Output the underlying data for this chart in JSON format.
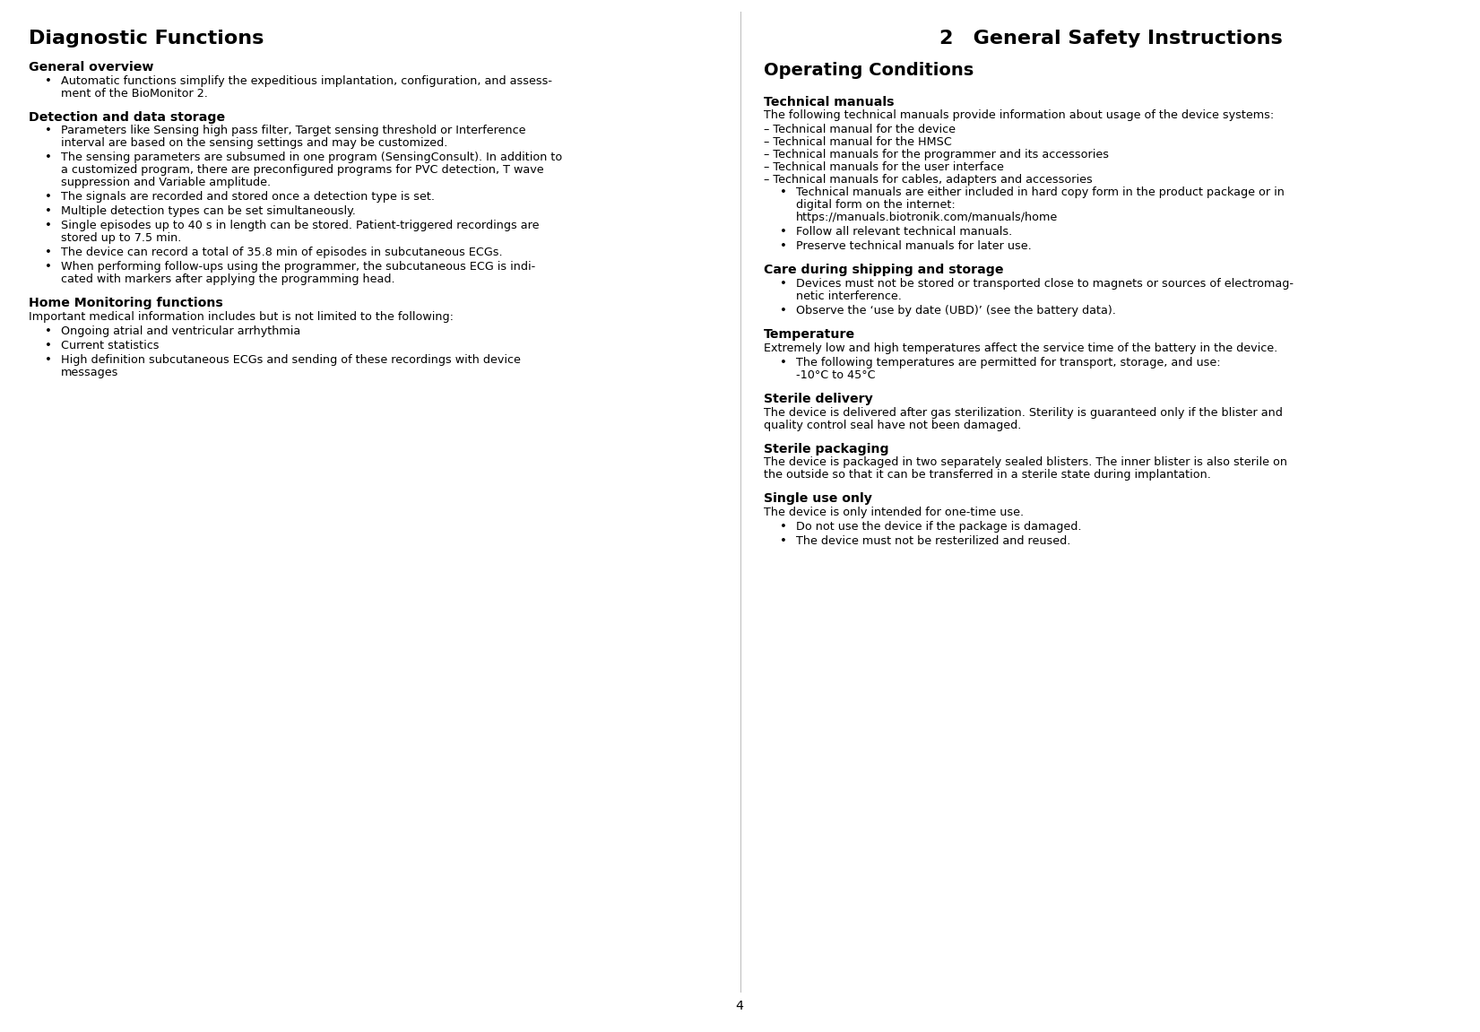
{
  "bg_color": "#ffffff",
  "text_color": "#000000",
  "page_number": "4",
  "left_column": {
    "title": "Diagnostic Functions",
    "sections": [
      {
        "type": "subheading_bold",
        "text": "General overview"
      },
      {
        "type": "bullet",
        "lines": [
          "Automatic functions simplify the expeditious implantation, configuration, and assess-",
          "ment of the BioMonitor 2."
        ]
      },
      {
        "type": "subheading_bold",
        "text": "Detection and data storage"
      },
      {
        "type": "bullet",
        "lines": [
          "Parameters like Sensing high pass filter, Target sensing threshold or Interference",
          "interval are based on the sensing settings and may be customized."
        ]
      },
      {
        "type": "bullet",
        "lines": [
          "The sensing parameters are subsumed in one program (SensingConsult). In addition to",
          "a customized program, there are preconfigured programs for PVC detection, T wave",
          "suppression and Variable amplitude."
        ]
      },
      {
        "type": "bullet",
        "lines": [
          "The signals are recorded and stored once a detection type is set."
        ]
      },
      {
        "type": "bullet",
        "lines": [
          "Multiple detection types can be set simultaneously."
        ]
      },
      {
        "type": "bullet",
        "lines": [
          "Single episodes up to 40 s in length can be stored. Patient-triggered recordings are",
          "stored up to 7.5 min."
        ]
      },
      {
        "type": "bullet",
        "lines": [
          "The device can record a total of 35.8 min of episodes in subcutaneous ECGs."
        ]
      },
      {
        "type": "bullet",
        "lines": [
          "When performing follow-ups using the programmer, the subcutaneous ECG is indi-",
          "cated with markers after applying the programming head."
        ]
      },
      {
        "type": "subheading_bold",
        "text": "Home Monitoring functions"
      },
      {
        "type": "plain",
        "lines": [
          "Important medical information includes but is not limited to the following:"
        ]
      },
      {
        "type": "bullet",
        "lines": [
          "Ongoing atrial and ventricular arrhythmia"
        ]
      },
      {
        "type": "bullet",
        "lines": [
          "Current statistics"
        ]
      },
      {
        "type": "bullet",
        "lines": [
          "High definition subcutaneous ECGs and sending of these recordings with device",
          "messages"
        ]
      }
    ]
  },
  "right_column": {
    "chapter_title": "2 General Safety Instructions",
    "sections": [
      {
        "type": "section_heading",
        "text": "Operating Conditions"
      },
      {
        "type": "subheading_bold",
        "text": "Technical manuals"
      },
      {
        "type": "plain",
        "lines": [
          "The following technical manuals provide information about usage of the device systems:"
        ]
      },
      {
        "type": "dash_item",
        "text": "Technical manual for the device"
      },
      {
        "type": "dash_item",
        "text": "Technical manual for the HMSC"
      },
      {
        "type": "dash_item",
        "text": "Technical manuals for the programmer and its accessories"
      },
      {
        "type": "dash_item",
        "text": "Technical manuals for the user interface"
      },
      {
        "type": "dash_item",
        "text": "Technical manuals for cables, adapters and accessories"
      },
      {
        "type": "bullet",
        "lines": [
          "Technical manuals are either included in hard copy form in the product package or in",
          "digital form on the internet:",
          "https://manuals.biotronik.com/manuals/home"
        ]
      },
      {
        "type": "bullet",
        "lines": [
          "Follow all relevant technical manuals."
        ]
      },
      {
        "type": "bullet",
        "lines": [
          "Preserve technical manuals for later use."
        ]
      },
      {
        "type": "subheading_bold",
        "text": "Care during shipping and storage"
      },
      {
        "type": "bullet",
        "lines": [
          "Devices must not be stored or transported close to magnets or sources of electromag-",
          "netic interference."
        ]
      },
      {
        "type": "bullet",
        "lines": [
          "Observe the ‘use by date (UBD)’ (see the battery data)."
        ]
      },
      {
        "type": "subheading_bold",
        "text": "Temperature"
      },
      {
        "type": "plain",
        "lines": [
          "Extremely low and high temperatures affect the service time of the battery in the device."
        ]
      },
      {
        "type": "bullet",
        "lines": [
          "The following temperatures are permitted for transport, storage, and use:",
          "-10°C to 45°C"
        ]
      },
      {
        "type": "subheading_bold",
        "text": "Sterile delivery"
      },
      {
        "type": "plain",
        "lines": [
          "The device is delivered after gas sterilization. Sterility is guaranteed only if the blister and",
          "quality control seal have not been damaged."
        ]
      },
      {
        "type": "subheading_bold",
        "text": "Sterile packaging"
      },
      {
        "type": "plain",
        "lines": [
          "The device is packaged in two separately sealed blisters. The inner blister is also sterile on",
          "the outside so that it can be transferred in a sterile state during implantation."
        ]
      },
      {
        "type": "subheading_bold",
        "text": "Single use only"
      },
      {
        "type": "plain",
        "lines": [
          "The device is only intended for one-time use."
        ]
      },
      {
        "type": "bullet",
        "lines": [
          "Do not use the device if the package is damaged."
        ]
      },
      {
        "type": "bullet",
        "lines": [
          "The device must not be resterilized and reused."
        ]
      }
    ]
  }
}
